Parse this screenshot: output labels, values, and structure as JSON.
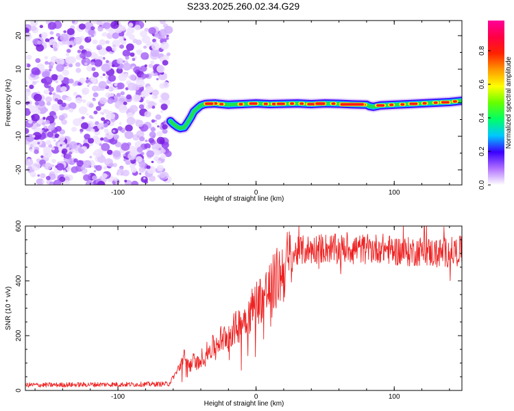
{
  "title": "S233.2025.260.02.34.G29",
  "chart_data": [
    {
      "type": "heatmap",
      "title": "S233.2025.260.02.34.G29",
      "xlabel": "Height of straight line (km)",
      "ylabel": "Frequency (Hz)",
      "xlim": [
        -167,
        149
      ],
      "ylim": [
        -24.5,
        24.5
      ],
      "xticks": [
        -100,
        0,
        100
      ],
      "yticks": [
        -20,
        -10,
        0,
        10,
        20
      ],
      "noise_region_x": [
        -167,
        -63
      ],
      "signal_track": {
        "x": [
          -62,
          -60,
          -57,
          -55,
          -52,
          -50,
          -47,
          -45,
          -42,
          -40,
          -37,
          -35,
          -30,
          -25,
          -20,
          -15,
          -10,
          -5,
          0,
          10,
          20,
          30,
          40,
          50,
          60,
          70,
          80,
          82,
          85,
          90,
          100,
          110,
          120,
          130,
          140,
          149
        ],
        "y": [
          -5.5,
          -6.3,
          -7.2,
          -7.6,
          -7.4,
          -6.2,
          -4.2,
          -2.6,
          -1.5,
          -0.8,
          -0.4,
          -0.3,
          -0.2,
          -0.4,
          -0.6,
          -0.5,
          -0.4,
          -0.3,
          -0.2,
          -0.4,
          -0.3,
          -0.2,
          -0.4,
          -0.2,
          -0.3,
          -0.5,
          -0.6,
          -1.0,
          -1.2,
          -0.8,
          -0.6,
          -0.4,
          -0.2,
          0.0,
          0.2,
          0.6
        ]
      },
      "colorbar": {
        "label": "Normalized spectral amplitude",
        "ticks": [
          "0.0",
          "0.2",
          "0.4",
          "0.6",
          "0.8"
        ],
        "range": [
          0,
          1
        ]
      }
    },
    {
      "type": "line",
      "xlabel": "Height of straight line (km)",
      "ylabel": "SNR (10 * v/v)",
      "xlim": [
        -167,
        149
      ],
      "ylim": [
        0,
        600
      ],
      "xticks": [
        -100,
        0,
        100
      ],
      "yticks": [
        0,
        200,
        400,
        600
      ],
      "series": [
        {
          "name": "SNR",
          "color": "#ee2222",
          "x": [
            -167,
            -150,
            -130,
            -110,
            -90,
            -75,
            -63,
            -56,
            -52,
            -48,
            -45,
            -42,
            -38,
            -35,
            -30,
            -25,
            -20,
            -15,
            -10,
            -5,
            0,
            5,
            10,
            15,
            20,
            25,
            28,
            32,
            40,
            50,
            60,
            70,
            80,
            90,
            100,
            110,
            120,
            130,
            140,
            149
          ],
          "values": [
            20,
            20,
            21,
            22,
            22,
            23,
            24,
            80,
            120,
            90,
            110,
            100,
            130,
            140,
            165,
            190,
            210,
            225,
            255,
            280,
            320,
            345,
            370,
            410,
            440,
            480,
            500,
            510,
            515,
            520,
            515,
            520,
            515,
            520,
            510,
            505,
            510,
            500,
            505,
            510
          ]
        }
      ]
    }
  ]
}
